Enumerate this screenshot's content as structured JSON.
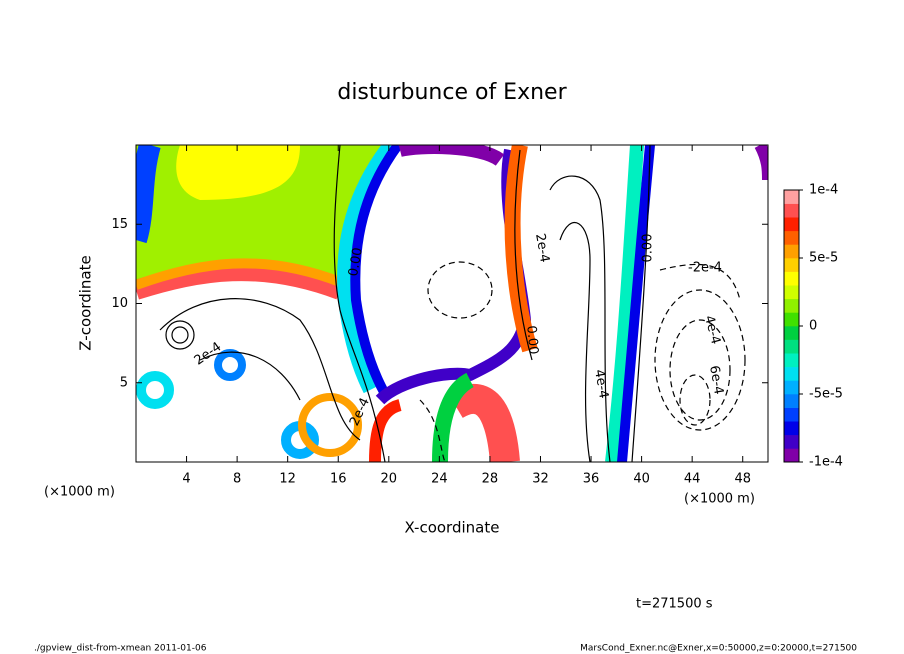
{
  "chart_data": {
    "type": "contour",
    "title": "disturbunce of Exner",
    "x_label": "X-coordinate",
    "y_label": "Z-coordinate",
    "x_unit": "(×1000 m)",
    "y_unit": "(×1000 m)",
    "xlim": [
      0,
      50
    ],
    "xticks": [
      4,
      8,
      12,
      16,
      20,
      24,
      28,
      32,
      36,
      40,
      44,
      48
    ],
    "ylim": [
      0,
      20
    ],
    "yticks": [
      5,
      10,
      15
    ],
    "clim": [
      -0.0001,
      0.0001
    ],
    "cticks": [
      {
        "value": 0.0001,
        "label": "1e-4"
      },
      {
        "value": 5e-05,
        "label": "5e-5"
      },
      0,
      {
        "value": -5e-05,
        "label": "-5e-5"
      },
      {
        "value": -0.0001,
        "label": "-1e-4"
      }
    ],
    "colors": [
      "#8000a8",
      "#4000c8",
      "#0000e8",
      "#0040ff",
      "#0080ff",
      "#00b0ff",
      "#00e0f0",
      "#00f0c0",
      "#00e080",
      "#00d040",
      "#40e000",
      "#90f000",
      "#d0ff00",
      "#ffff00",
      "#ffd000",
      "#ffa000",
      "#ff6000",
      "#ff2000",
      "#ff5050",
      "#ffa0a0"
    ],
    "contour_labels": [
      "0.00",
      "2e-4",
      "0.00",
      "-2e-4",
      "4e-4",
      "6e-4",
      "2e-4",
      "4e-4",
      "2e-4",
      "0.00"
    ],
    "time_label": "t=271500 s",
    "footer_left": "./gpview_dist-from-xmean  2011-01-06",
    "footer_right": "MarsCond_Exner.nc@Exner,x=0:50000,z=0:20000,t=271500"
  }
}
